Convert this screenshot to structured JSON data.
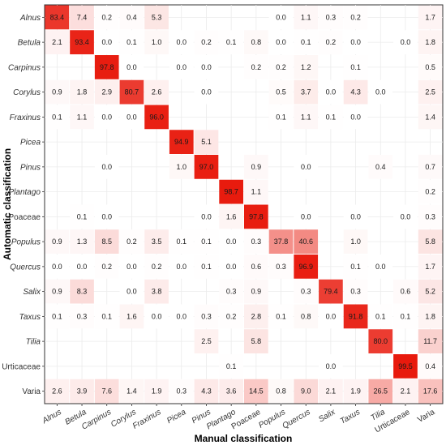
{
  "chart_data": {
    "type": "heatmap",
    "xlabel": "Manual classification",
    "ylabel": "Automatic classification",
    "x_categories": [
      "Alnus",
      "Betula",
      "Carpinus",
      "Corylus",
      "Fraxinus",
      "Picea",
      "Pinus",
      "Plantago",
      "Poaceae",
      "Populus",
      "Quercus",
      "Salix",
      "Taxus",
      "Tilia",
      "Urticaceae",
      "Varia"
    ],
    "y_categories": [
      "Alnus",
      "Betula",
      "Carpinus",
      "Corylus",
      "Fraxinus",
      "Picea",
      "Pinus",
      "Plantago",
      "Poaceae",
      "Populus",
      "Quercus",
      "Salix",
      "Taxus",
      "Tilia",
      "Urticaceae",
      "Varia"
    ],
    "italic_categories": [
      "Alnus",
      "Betula",
      "Carpinus",
      "Corylus",
      "Fraxinus",
      "Picea",
      "Pinus",
      "Plantago",
      "Populus",
      "Quercus",
      "Salix",
      "Taxus",
      "Tilia"
    ],
    "value_unit": "%",
    "color_low": "#ffffff",
    "color_high": "#e8190c",
    "grid": true,
    "values": [
      [
        "83.4",
        "7.4",
        "0.2",
        "0.4",
        "5.3",
        null,
        null,
        null,
        null,
        "0.0",
        "1.1",
        "0.3",
        "0.2",
        null,
        null,
        "1.7"
      ],
      [
        "2.1",
        "93.4",
        "0.0",
        "0.1",
        "1.0",
        "0.0",
        "0.2",
        "0.1",
        "0.8",
        "0.0",
        "0.1",
        "0.2",
        "0.0",
        null,
        "0.0",
        "1.8"
      ],
      [
        null,
        null,
        "97.8",
        "0.0",
        null,
        "0.0",
        "0.0",
        null,
        "0.2",
        "0.2",
        "1.2",
        null,
        "0.1",
        null,
        null,
        "0.5"
      ],
      [
        "0.9",
        "1.8",
        "2.9",
        "80.7",
        "2.6",
        null,
        "0.0",
        null,
        null,
        "0.5",
        "3.7",
        "0.0",
        "4.3",
        "0.0",
        null,
        "2.5"
      ],
      [
        "0.1",
        "1.1",
        "0.0",
        "0.0",
        "96.0",
        null,
        null,
        null,
        null,
        "0.1",
        "1.1",
        "0.1",
        "0.0",
        null,
        null,
        "1.4"
      ],
      [
        null,
        null,
        null,
        null,
        null,
        "94.9",
        "5.1",
        null,
        null,
        null,
        null,
        null,
        null,
        null,
        null,
        null
      ],
      [
        null,
        null,
        "0.0",
        null,
        null,
        "1.0",
        "97.0",
        null,
        "0.9",
        null,
        "0.0",
        null,
        null,
        "0.4",
        null,
        "0.7"
      ],
      [
        null,
        null,
        null,
        null,
        null,
        null,
        null,
        "98.7",
        "1.1",
        null,
        null,
        null,
        null,
        null,
        null,
        "0.2"
      ],
      [
        null,
        "0.1",
        "0.0",
        null,
        null,
        null,
        "0.0",
        "1.6",
        "97.8",
        null,
        "0.0",
        null,
        "0.0",
        null,
        "0.0",
        "0.3"
      ],
      [
        "0.9",
        "1.3",
        "8.5",
        "0.2",
        "3.5",
        "0.1",
        "0.1",
        "0.0",
        "0.3",
        "37.8",
        "40.6",
        null,
        "1.0",
        null,
        null,
        "5.8"
      ],
      [
        "0.0",
        "0.0",
        "0.2",
        "0.0",
        "0.2",
        "0.0",
        "0.1",
        "0.0",
        "0.6",
        "0.3",
        "96.9",
        null,
        "0.1",
        "0.0",
        null,
        "1.7"
      ],
      [
        "0.9",
        "8.3",
        null,
        "0.0",
        "3.8",
        null,
        null,
        "0.3",
        "0.9",
        null,
        "0.3",
        "79.4",
        "0.3",
        null,
        "0.6",
        "5.2"
      ],
      [
        "0.1",
        "0.3",
        "0.1",
        "1.6",
        "0.0",
        "0.0",
        "0.3",
        "0.2",
        "2.8",
        "0.1",
        "0.8",
        "0.0",
        "91.8",
        "0.1",
        "0.1",
        "1.8"
      ],
      [
        null,
        null,
        null,
        null,
        null,
        null,
        "2.5",
        null,
        "5.8",
        null,
        null,
        null,
        null,
        "80.0",
        null,
        "11.7"
      ],
      [
        null,
        null,
        null,
        null,
        null,
        null,
        null,
        "0.1",
        null,
        null,
        null,
        "0.0",
        null,
        null,
        "99.5",
        "0.4"
      ],
      [
        "2.6",
        "3.9",
        "7.6",
        "1.4",
        "1.9",
        "0.3",
        "4.3",
        "3.6",
        "14.5",
        "0.8",
        "9.0",
        "2.1",
        "1.9",
        "26.5",
        "2.1",
        "17.6"
      ]
    ]
  }
}
